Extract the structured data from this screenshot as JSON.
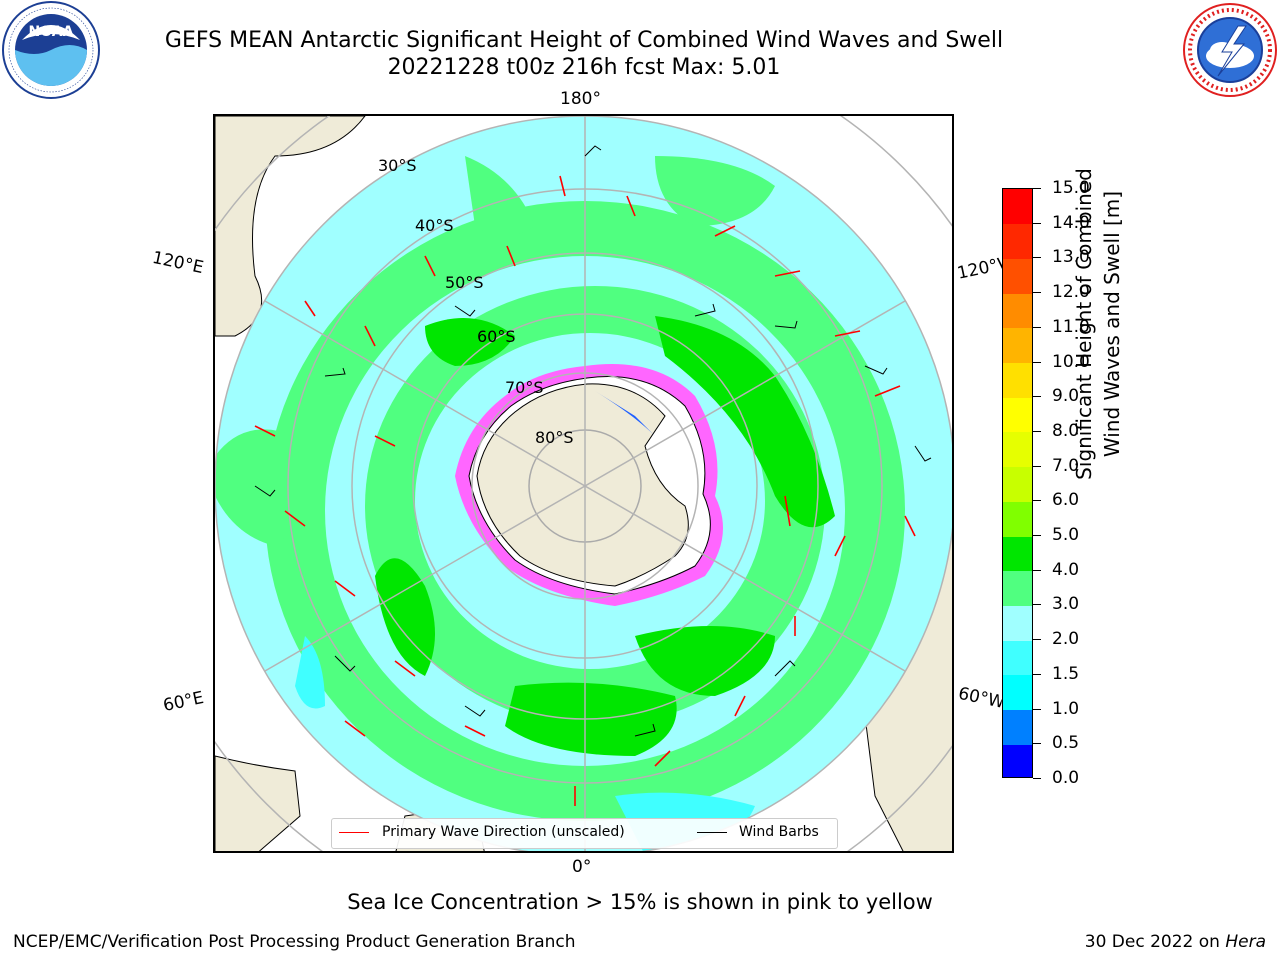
{
  "header": {
    "title_line1": "GEFS MEAN Antarctic Significant Height of Combined Wind Waves and Swell",
    "title_line2": "20221228 t00z 216h fcst   Max: 5.01"
  },
  "logos": {
    "left": {
      "name": "noaa-logo",
      "text": "NOAA",
      "ring_text": "NATIONAL OCEANIC AND ATMOSPHERIC ADMINISTRATION · U.S. DEPARTMENT OF COMMERCE"
    },
    "right": {
      "name": "nws-logo",
      "ring_text": "NATIONAL WEATHER SERVICE"
    }
  },
  "map": {
    "projection": "south-polar-stereographic",
    "lon_labels": {
      "top": "180°",
      "bottom": "0°",
      "upper_left": "120°E",
      "upper_right": "120°W",
      "lower_left": "60°E",
      "lower_right": "60°W"
    },
    "lat_labels": [
      "30°S",
      "40°S",
      "50°S",
      "60°S",
      "70°S",
      "80°S"
    ],
    "legend": {
      "wave_label": "Primary Wave Direction (unscaled)",
      "wind_label": "Wind Barbs",
      "wave_color": "#ff0000",
      "wind_color": "#000000"
    }
  },
  "colorbar": {
    "title": "Significant Height of Combined Wind Waves and Swell [m]",
    "levels": [
      "0.0",
      "0.5",
      "1.0",
      "1.5",
      "2.0",
      "3.0",
      "4.0",
      "5.0",
      "6.0",
      "7.0",
      "8.0",
      "9.0",
      "10.0",
      "11.0",
      "12.0",
      "13.0",
      "14.0",
      "15.0"
    ],
    "colors": [
      "#0000ff",
      "#0080ff",
      "#00ffff",
      "#40ffff",
      "#a0ffff",
      "#50ff80",
      "#00e600",
      "#80ff00",
      "#c8ff00",
      "#e6ff00",
      "#ffff00",
      "#ffe000",
      "#ffb400",
      "#ff8c00",
      "#ff5000",
      "#ff2800",
      "#ff0000"
    ]
  },
  "footer": {
    "sea_ice_note": "Sea Ice Concentration > 15% is shown in pink to yellow",
    "left": "NCEP/EMC/Verification Post Processing Product Generation Branch",
    "right_date": "30 Dec 2022 on ",
    "right_machine": "Hera"
  }
}
